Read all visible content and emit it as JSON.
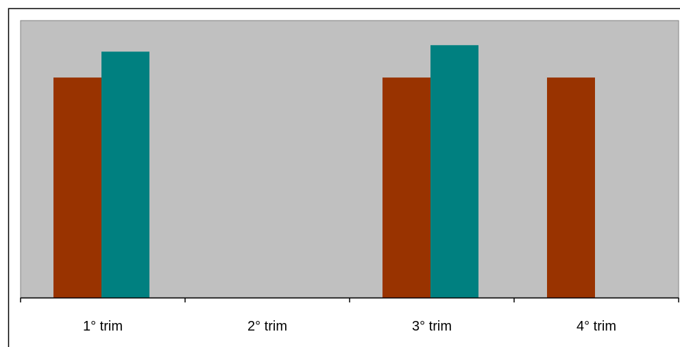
{
  "chart_data": {
    "type": "bar",
    "categories": [
      "1° trim",
      "2° trim",
      "3° trim",
      "4° trim"
    ],
    "series": [
      {
        "values": [
          85,
          0,
          85,
          85
        ],
        "color": "#993300"
      },
      {
        "values": [
          95,
          0,
          97.5,
          0
        ],
        "color": "#008080"
      }
    ],
    "ylim": [
      0,
      107
    ],
    "grid": false,
    "legend": "none",
    "plot_background": "#c0c0c0"
  }
}
